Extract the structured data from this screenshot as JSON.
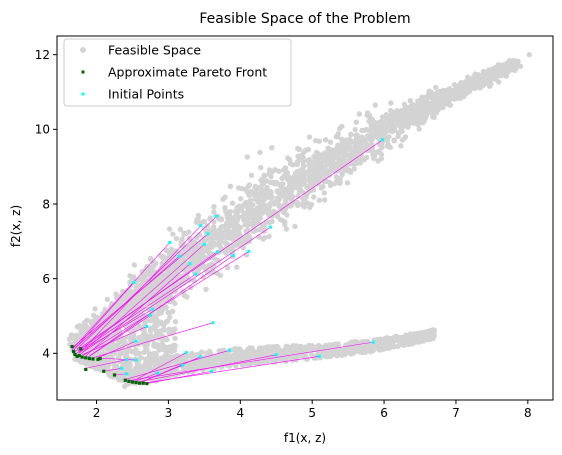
{
  "chart_data": {
    "type": "scatter",
    "title": "Feasible Space of the Problem",
    "xlabel": "f1(x, z)",
    "ylabel": "f2(x, z)",
    "xlim": [
      1.45,
      8.35
    ],
    "ylim": [
      2.75,
      12.5
    ],
    "xticks": [
      "2",
      "3",
      "4",
      "5",
      "6",
      "7",
      "8"
    ],
    "yticks": [
      "4",
      "6",
      "8",
      "10",
      "12"
    ],
    "grid": false,
    "legend_position": "top-left",
    "legend": [
      "Feasible Space",
      "Approximate Pareto Front",
      "Initial Points"
    ],
    "colors": {
      "feasible": "#d3d3d3",
      "pareto": "#006400",
      "initial": "#00ffff",
      "trajectory": "#ff00ff"
    },
    "series": [
      {
        "name": "Feasible Space",
        "note": "dense cloud of gray points (upper band from about (1.7,4.2) to (8.0,12.0), lower band from about (2.3,3.3) to (6.7,4.75))"
      },
      {
        "name": "Approximate Pareto Front",
        "points": [
          [
            1.66,
            4.18
          ],
          [
            1.68,
            4.05
          ],
          [
            1.7,
            3.97
          ],
          [
            1.73,
            3.92
          ],
          [
            1.76,
            3.94
          ],
          [
            1.78,
            4.12
          ],
          [
            1.8,
            3.9
          ],
          [
            1.85,
            3.88
          ],
          [
            1.9,
            3.86
          ],
          [
            1.95,
            3.85
          ],
          [
            2.02,
            3.84
          ],
          [
            2.05,
            3.86
          ],
          [
            1.85,
            3.57
          ],
          [
            2.1,
            3.52
          ],
          [
            2.25,
            3.42
          ],
          [
            2.4,
            3.28
          ],
          [
            2.45,
            3.25
          ],
          [
            2.5,
            3.23
          ],
          [
            2.55,
            3.22
          ],
          [
            2.6,
            3.2
          ],
          [
            2.65,
            3.2
          ],
          [
            2.7,
            3.19
          ]
        ]
      },
      {
        "name": "Initial Points",
        "points": [
          [
            5.98,
            9.72
          ],
          [
            3.67,
            7.67
          ],
          [
            3.45,
            7.42
          ],
          [
            3.55,
            7.2
          ],
          [
            4.42,
            7.38
          ],
          [
            3.02,
            6.97
          ],
          [
            3.5,
            6.92
          ],
          [
            3.68,
            6.72
          ],
          [
            4.12,
            6.73
          ],
          [
            3.15,
            6.6
          ],
          [
            3.3,
            6.4
          ],
          [
            3.38,
            6.12
          ],
          [
            3.9,
            6.62
          ],
          [
            2.52,
            5.9
          ],
          [
            2.78,
            5.18
          ],
          [
            2.75,
            5.02
          ],
          [
            2.7,
            4.72
          ],
          [
            3.62,
            4.82
          ],
          [
            2.55,
            4.33
          ],
          [
            3.85,
            4.08
          ],
          [
            4.5,
            3.96
          ],
          [
            3.25,
            4.02
          ],
          [
            3.45,
            3.91
          ],
          [
            5.85,
            4.3
          ],
          [
            5.1,
            3.92
          ],
          [
            2.42,
            3.83
          ],
          [
            2.55,
            3.82
          ],
          [
            3.6,
            3.52
          ],
          [
            3.2,
            3.68
          ],
          [
            2.85,
            3.47
          ],
          [
            2.42,
            3.45
          ],
          [
            2.35,
            3.6
          ]
        ]
      }
    ],
    "trajectories": [
      [
        [
          5.98,
          9.72
        ],
        [
          1.7,
          4.05
        ]
      ],
      [
        [
          3.67,
          7.67
        ],
        [
          1.73,
          4.12
        ]
      ],
      [
        [
          3.45,
          7.42
        ],
        [
          1.76,
          4.0
        ]
      ],
      [
        [
          3.55,
          7.2
        ],
        [
          1.68,
          4.18
        ]
      ],
      [
        [
          4.42,
          7.38
        ],
        [
          1.8,
          4.02
        ]
      ],
      [
        [
          3.02,
          6.97
        ],
        [
          1.66,
          4.1
        ]
      ],
      [
        [
          3.5,
          6.92
        ],
        [
          1.78,
          3.98
        ]
      ],
      [
        [
          3.68,
          6.72
        ],
        [
          1.74,
          4.06
        ]
      ],
      [
        [
          4.12,
          6.73
        ],
        [
          1.82,
          3.95
        ]
      ],
      [
        [
          3.15,
          6.6
        ],
        [
          1.7,
          4.14
        ]
      ],
      [
        [
          3.3,
          6.4
        ],
        [
          1.85,
          3.93
        ]
      ],
      [
        [
          3.38,
          6.12
        ],
        [
          1.72,
          4.0
        ]
      ],
      [
        [
          3.9,
          6.62
        ],
        [
          1.88,
          3.9
        ]
      ],
      [
        [
          2.52,
          5.9
        ],
        [
          1.68,
          4.08
        ]
      ],
      [
        [
          2.78,
          5.18
        ],
        [
          1.75,
          4.02
        ]
      ],
      [
        [
          2.75,
          5.02
        ],
        [
          1.9,
          3.92
        ]
      ],
      [
        [
          2.7,
          4.72
        ],
        [
          1.8,
          3.96
        ]
      ],
      [
        [
          3.62,
          4.82
        ],
        [
          1.95,
          3.88
        ]
      ],
      [
        [
          2.55,
          4.33
        ],
        [
          2.0,
          3.86
        ]
      ],
      [
        [
          3.85,
          4.08
        ],
        [
          2.4,
          3.3
        ]
      ],
      [
        [
          4.5,
          3.96
        ],
        [
          2.55,
          3.22
        ]
      ],
      [
        [
          3.25,
          4.02
        ],
        [
          2.5,
          3.25
        ]
      ],
      [
        [
          3.45,
          3.91
        ],
        [
          2.6,
          3.21
        ]
      ],
      [
        [
          5.85,
          4.3
        ],
        [
          2.45,
          3.27
        ]
      ],
      [
        [
          5.1,
          3.92
        ],
        [
          2.65,
          3.2
        ]
      ],
      [
        [
          2.42,
          3.83
        ],
        [
          1.85,
          3.6
        ]
      ],
      [
        [
          2.55,
          3.82
        ],
        [
          2.05,
          3.87
        ]
      ],
      [
        [
          3.6,
          3.52
        ],
        [
          2.7,
          3.19
        ]
      ],
      [
        [
          3.2,
          3.68
        ],
        [
          2.58,
          3.2
        ]
      ],
      [
        [
          2.85,
          3.47
        ],
        [
          2.5,
          3.22
        ]
      ],
      [
        [
          2.42,
          3.45
        ],
        [
          2.25,
          3.42
        ]
      ],
      [
        [
          2.35,
          3.6
        ],
        [
          2.1,
          3.52
        ]
      ]
    ]
  }
}
